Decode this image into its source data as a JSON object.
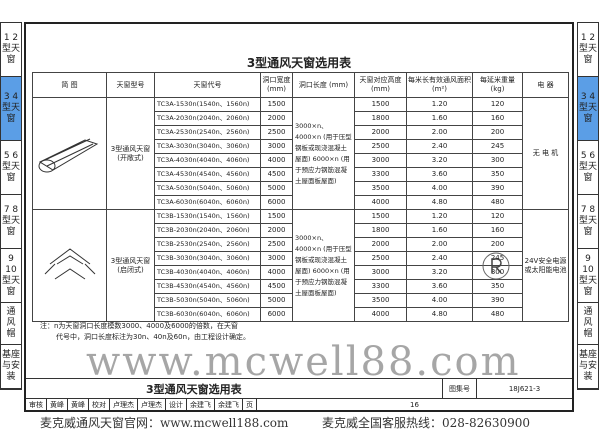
{
  "side_tabs": [
    {
      "label": "1 2 型天窗",
      "active": false
    },
    {
      "label": "3 4 型天窗",
      "active": true
    },
    {
      "label": "5 6 型天窗",
      "active": false
    },
    {
      "label": "7 8 型天窗",
      "active": false
    },
    {
      "label": "9 10 型天窗",
      "active": false
    },
    {
      "label": "通 风 帽",
      "active": false
    },
    {
      "label": "基座与安装",
      "active": false
    }
  ],
  "title": "3型通风天窗选用表",
  "headers": [
    "简 图",
    "天窗型号",
    "天窗代号",
    "洞口宽度 (mm)",
    "洞口长度 (mm)",
    "天窗对应高度 (mm)",
    "每米长有效通风面积 (m²)",
    "每延米重量 (kg)",
    "电 器"
  ],
  "groups": [
    {
      "model": "3型通风天窗 (开敞式)",
      "length": "3000×n、4000×n (用于压型钢板或现浇混凝土屋面) 6000×n (用于预应力钢筋混凝土屋面板屋面)",
      "electric": "无 电 机",
      "rows": [
        [
          "TC3A-1530n(1540n、1560n)",
          "1500",
          "1500",
          "1.20",
          "120"
        ],
        [
          "TC3A-2030n(2040n、2060n)",
          "2000",
          "1800",
          "1.60",
          "160"
        ],
        [
          "TC3A-2530n(2540n、2560n)",
          "2500",
          "2000",
          "2.00",
          "200"
        ],
        [
          "TC3A-3030n(3040n、3060n)",
          "3000",
          "2500",
          "2.40",
          "245"
        ],
        [
          "TC3A-4030n(4040n、4060n)",
          "4000",
          "3000",
          "3.20",
          "300"
        ],
        [
          "TC3A-4530n(4540n、4560n)",
          "4500",
          "3300",
          "3.60",
          "350"
        ],
        [
          "TC3A-5030n(5040n、5060n)",
          "5000",
          "3500",
          "4.00",
          "390"
        ],
        [
          "TC3A-6030n(6040n、6060n)",
          "6000",
          "4000",
          "4.80",
          "480"
        ]
      ]
    },
    {
      "model": "3型通风天窗 (启闭式)",
      "length": "3000×n、4000×n (用于压型钢板或现浇混凝土屋面) 6000×n (用于预应力钢筋混凝土屋面板屋面)",
      "electric": "24V安全电源或太阳能电池",
      "rows": [
        [
          "TC3B-1530n(1540n、1560n)",
          "1500",
          "1500",
          "1.20",
          "120"
        ],
        [
          "TC3B-2030n(2040n、2060n)",
          "2000",
          "1800",
          "1.60",
          "160"
        ],
        [
          "TC3B-2530n(2540n、2560n)",
          "2500",
          "2000",
          "2.00",
          "200"
        ],
        [
          "TC3B-3030n(3040n、3060n)",
          "3000",
          "2500",
          "2.40",
          "245"
        ],
        [
          "TC3B-4030n(4040n、4060n)",
          "4000",
          "3000",
          "3.20",
          "300"
        ],
        [
          "TC3B-4530n(4540n、4560n)",
          "4500",
          "3300",
          "3.60",
          "350"
        ],
        [
          "TC3B-5030n(5040n、5060n)",
          "5000",
          "3500",
          "4.00",
          "390"
        ],
        [
          "TC3B-6030n(6040n、6060n)",
          "6000",
          "4000",
          "4.80",
          "480"
        ]
      ]
    }
  ],
  "note": [
    "注：n为天窗洞口长度模数3000、4000及6000的倍数，在天窗",
    "代号中，洞口长度标注为30n、40n及60n，由工程设计确定。"
  ],
  "title_block": {
    "name": "3型通风天窗选用表",
    "atlas_label": "图集号",
    "atlas_no": "18J621-3",
    "page_label": "页",
    "page_no": "16",
    "signatures": [
      "审核",
      "黄峰",
      "黄峰",
      "校对",
      "卢理杰",
      "卢理杰",
      "设计",
      "余建飞",
      "余建飞"
    ]
  },
  "watermark": "www.mcwell88.com",
  "footer": {
    "left": "麦克威通风天窗官网：www.mcwell188.com",
    "right": "麦克威全国客服热线：028-82630900"
  }
}
